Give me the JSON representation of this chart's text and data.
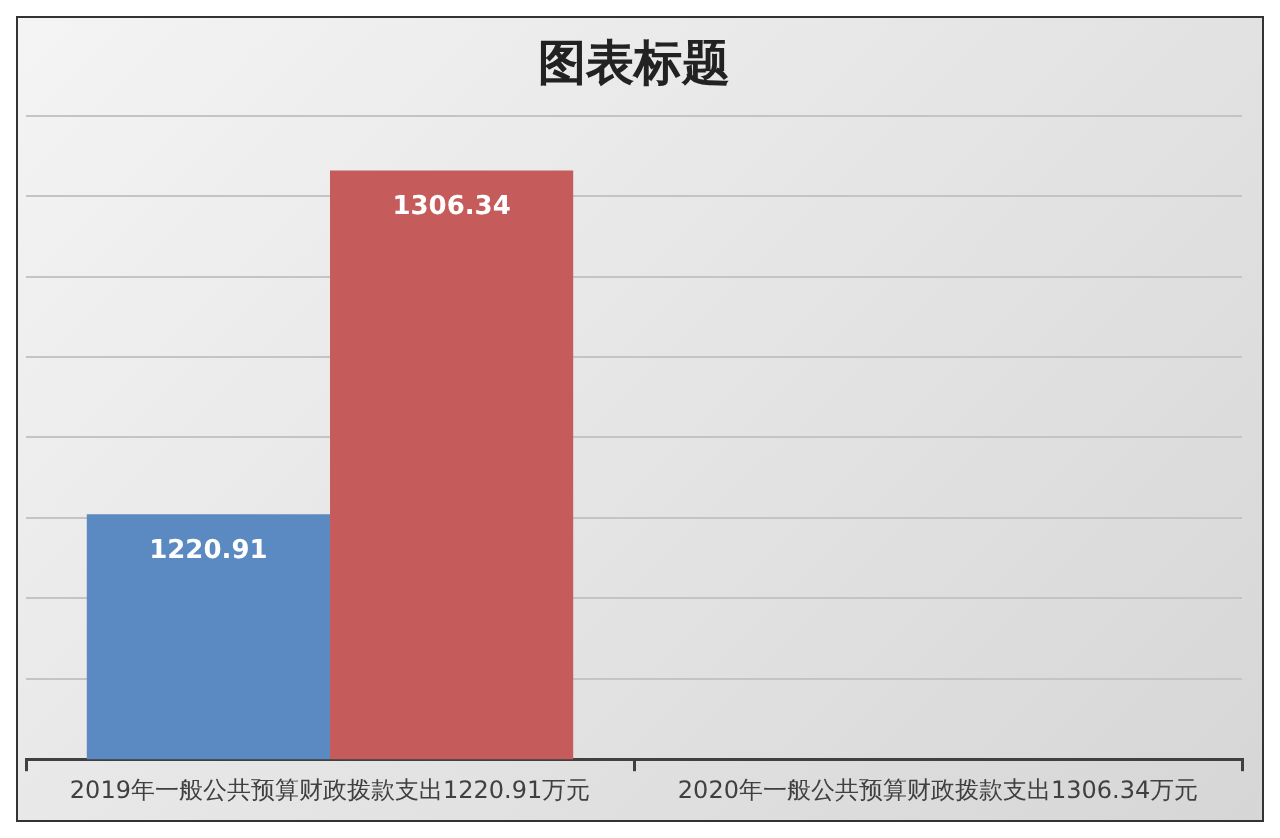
{
  "chart_data": {
    "type": "bar",
    "title": "图表标题",
    "categories": [
      "2019年一般公共预算财政拨款支出1220.91万元",
      "2020年一般公共预算财政拨款支出1306.34万元"
    ],
    "series": [
      {
        "color": "#5b89c2",
        "values": [
          1220.91,
          null
        ]
      },
      {
        "color": "#c65b5b",
        "values": [
          1306.34,
          null
        ]
      }
    ],
    "grid": "y",
    "tick_labels": "x",
    "data_labels": true,
    "legend": false
  }
}
